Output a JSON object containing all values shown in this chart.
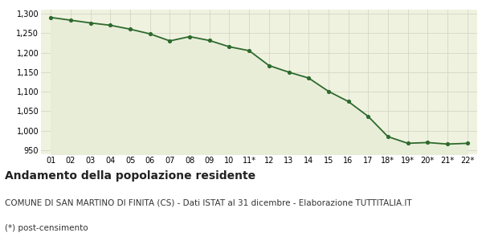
{
  "x_labels": [
    "01",
    "02",
    "03",
    "04",
    "05",
    "06",
    "07",
    "08",
    "09",
    "10",
    "11*",
    "12",
    "13",
    "14",
    "15",
    "16",
    "17",
    "18*",
    "19*",
    "20*",
    "21*",
    "22*"
  ],
  "values": [
    1290,
    1283,
    1276,
    1270,
    1260,
    1248,
    1230,
    1241,
    1231,
    1215,
    1205,
    1167,
    1150,
    1135,
    1101,
    1075,
    1037,
    985,
    968,
    970,
    966,
    968
  ],
  "line_color": "#2d6a2d",
  "fill_color": "#e8edd8",
  "marker_color": "#2d6a2d",
  "bg_color": "#f0f2e0",
  "grid_color": "#d0d0c0",
  "ylim": [
    940,
    1310
  ],
  "yticks": [
    950,
    1000,
    1050,
    1100,
    1150,
    1200,
    1250,
    1300
  ],
  "title_bold": "Andamento della popolazione residente",
  "subtitle": "COMUNE DI SAN MARTINO DI FINITA (CS) - Dati ISTAT al 31 dicembre - Elaborazione TUTTITALIA.IT",
  "footnote": "(*) post-censimento",
  "title_fontsize": 10,
  "subtitle_fontsize": 7.5,
  "footnote_fontsize": 7.5
}
